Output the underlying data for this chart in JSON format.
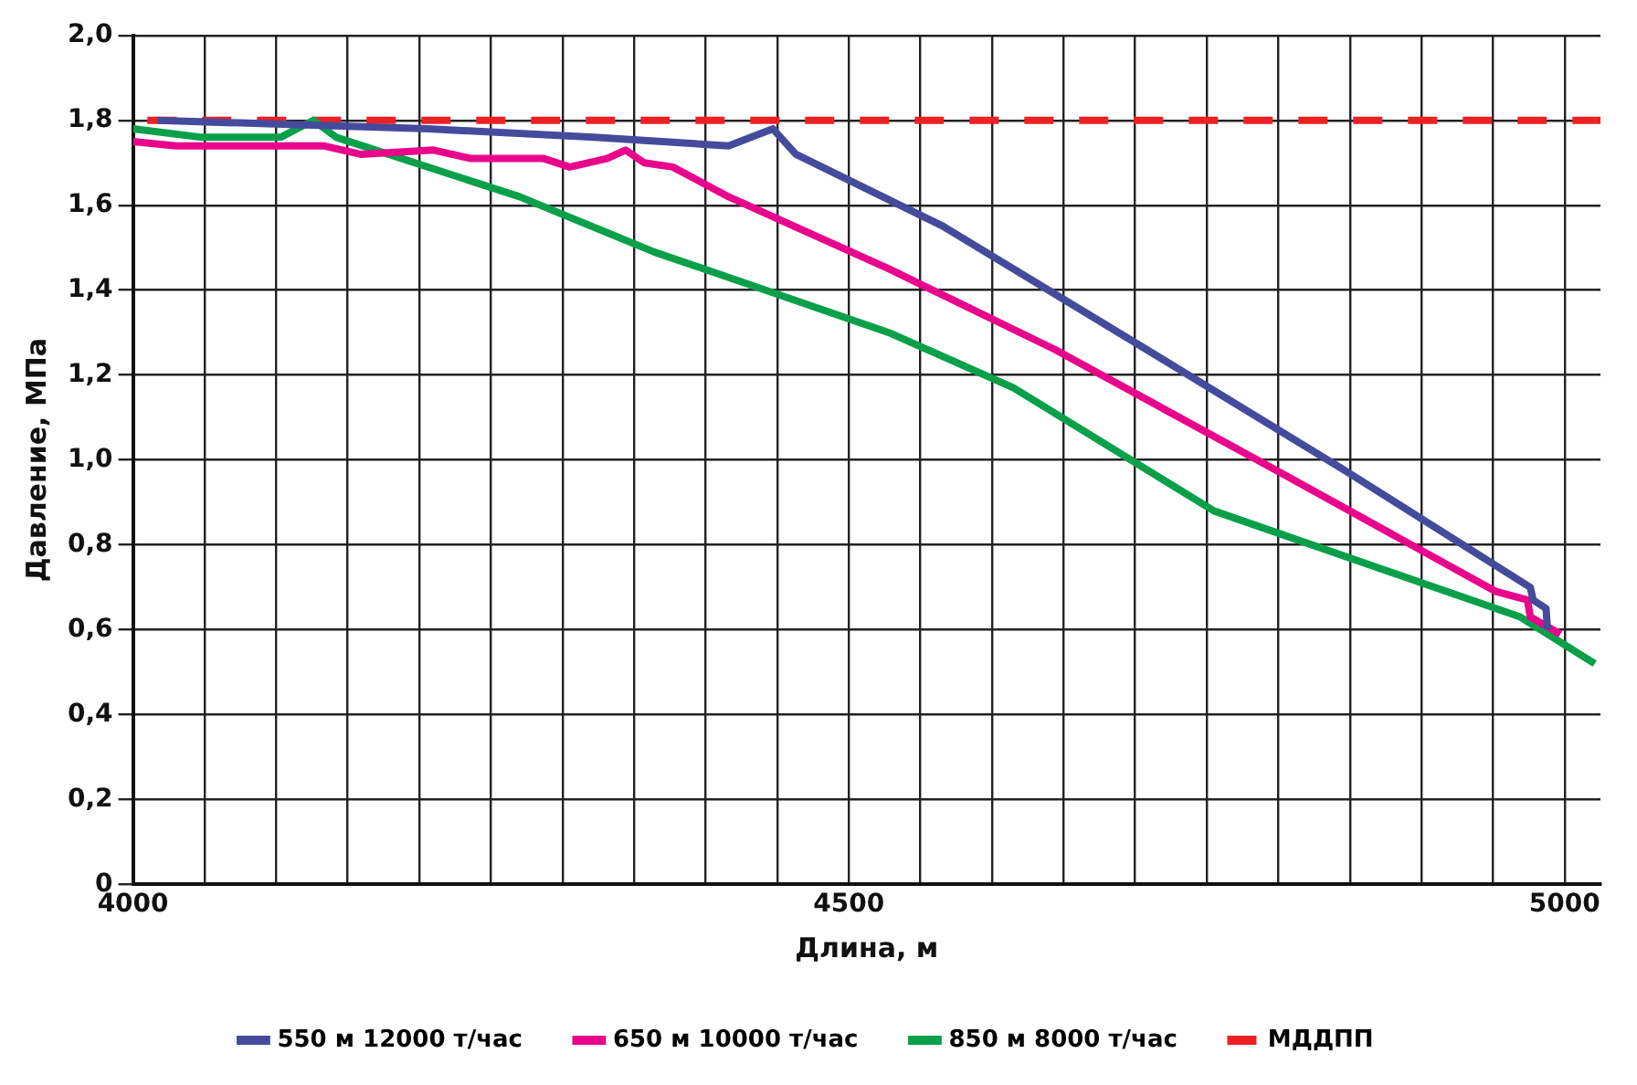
{
  "chart_data": {
    "type": "line",
    "xlabel": "Длина, м",
    "ylabel": "Давление, МПа",
    "xlim": [
      4000,
      5025
    ],
    "ylim": [
      0,
      2.0
    ],
    "xticks": [
      4000,
      {
        "value": 4050,
        "label": null
      },
      {
        "value": 4100,
        "label": null
      },
      {
        "value": 4150,
        "label": null
      },
      {
        "value": 4200,
        "label": null
      },
      {
        "value": 4250,
        "label": null
      },
      {
        "value": 4300,
        "label": null
      },
      {
        "value": 4350,
        "label": null
      },
      {
        "value": 4400,
        "label": null
      },
      {
        "value": 4450,
        "label": null
      },
      4500,
      {
        "value": 4550,
        "label": null
      },
      {
        "value": 4600,
        "label": null
      },
      {
        "value": 4650,
        "label": null
      },
      {
        "value": 4700,
        "label": null
      },
      {
        "value": 4750,
        "label": null
      },
      {
        "value": 4800,
        "label": null
      },
      {
        "value": 4850,
        "label": null
      },
      {
        "value": 4900,
        "label": null
      },
      {
        "value": 4950,
        "label": null
      },
      5000
    ],
    "yticks": [
      0,
      {
        "value": 0.2,
        "label": "0,2"
      },
      {
        "value": 0.4,
        "label": "0,4"
      },
      {
        "value": 0.6,
        "label": "0,6"
      },
      {
        "value": 0.8,
        "label": "0,8"
      },
      {
        "value": 1.0,
        "label": "1,0"
      },
      {
        "value": 1.2,
        "label": "1,2"
      },
      {
        "value": 1.4,
        "label": "1,4"
      },
      {
        "value": 1.6,
        "label": "1,6"
      },
      {
        "value": 1.8,
        "label": "1,8"
      },
      {
        "value": 2.0,
        "label": "2,0"
      }
    ],
    "grid": true,
    "legend": "bottom",
    "marker": "none",
    "series": [
      {
        "name": "550 м 12000 т/час",
        "color": "#454b9c",
        "x": [
          4017,
          4206,
          4322,
          4416,
          4447,
          4463,
          4566,
          4708,
          4849,
          4976,
          4978,
          4987,
          4988
        ],
        "values": [
          1.8,
          1.78,
          1.76,
          1.74,
          1.78,
          1.72,
          1.55,
          1.26,
          0.97,
          0.7,
          0.67,
          0.65,
          0.6
        ]
      },
      {
        "name": "650 м 10000 т/час",
        "color": "#e8058c",
        "x": [
          4000,
          4030,
          4073,
          4133,
          4159,
          4210,
          4236,
          4287,
          4305,
          4331,
          4344,
          4357,
          4377,
          4416,
          4528,
          4644,
          4807,
          4952,
          4974,
          4976,
          4997
        ],
        "values": [
          1.75,
          1.74,
          1.74,
          1.74,
          1.72,
          1.73,
          1.71,
          1.71,
          1.69,
          1.71,
          1.73,
          1.7,
          1.69,
          1.62,
          1.45,
          1.26,
          0.96,
          0.69,
          0.67,
          0.63,
          0.59
        ]
      },
      {
        "name": "850 м 8000 т/час",
        "color": "#0aa04a",
        "x": [
          4000,
          4048,
          4103,
          4126,
          4142,
          4215,
          4270,
          4364,
          4416,
          4528,
          4615,
          4755,
          4969,
          5021
        ],
        "values": [
          1.78,
          1.76,
          1.76,
          1.8,
          1.76,
          1.68,
          1.62,
          1.49,
          1.43,
          1.3,
          1.17,
          0.88,
          0.63,
          0.52
        ]
      },
      {
        "name": "МДДПП",
        "color": "#ee2024",
        "line_style": "dashed",
        "x": [
          4010,
          5025
        ],
        "values": [
          1.8,
          1.8
        ]
      }
    ]
  }
}
